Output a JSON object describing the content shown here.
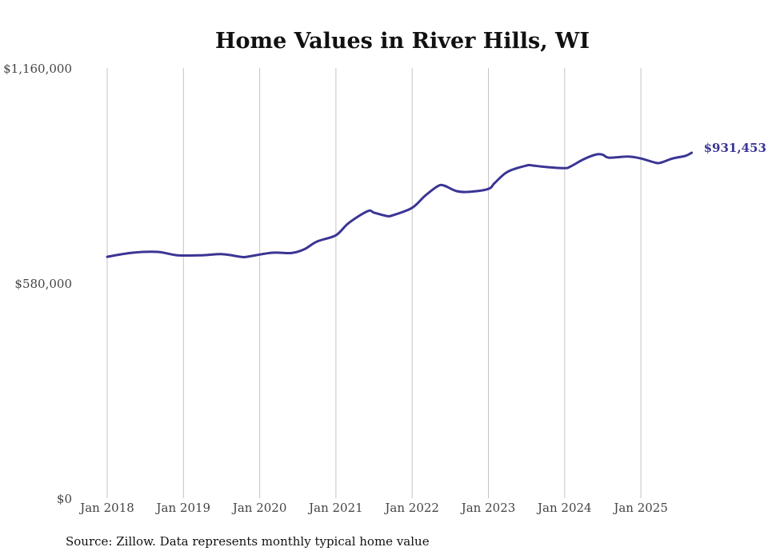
{
  "chart_data": {
    "type": "line",
    "title": "Home Values in River Hills, WI",
    "xlabel": "",
    "ylabel": "",
    "ylim": [
      0,
      1160000
    ],
    "yticks": [
      0,
      580000,
      1160000
    ],
    "ytick_labels": [
      "$0",
      "$580,000",
      "$1,160,000"
    ],
    "xticks": [
      "2018-01",
      "2019-01",
      "2020-01",
      "2021-01",
      "2022-01",
      "2023-01",
      "2024-01",
      "2025-01"
    ],
    "xtick_labels": [
      "Jan 2018",
      "Jan 2019",
      "Jan 2020",
      "Jan 2021",
      "Jan 2022",
      "Jan 2023",
      "Jan 2024",
      "Jan 2025"
    ],
    "grid": "vertical",
    "series": [
      {
        "name": "Typical home value",
        "color": "#3b3594",
        "points": [
          [
            "2018-01",
            651000
          ],
          [
            "2018-05",
            662000
          ],
          [
            "2018-09",
            664000
          ],
          [
            "2018-12",
            655000
          ],
          [
            "2019-04",
            655000
          ],
          [
            "2019-07",
            658000
          ],
          [
            "2019-10",
            651000
          ],
          [
            "2019-11",
            651000
          ],
          [
            "2020-03",
            662000
          ],
          [
            "2020-06",
            661000
          ],
          [
            "2020-08",
            671000
          ],
          [
            "2020-10",
            692000
          ],
          [
            "2021-01",
            709000
          ],
          [
            "2021-03",
            742000
          ],
          [
            "2021-06",
            774000
          ],
          [
            "2021-07",
            770000
          ],
          [
            "2021-09",
            761000
          ],
          [
            "2021-10",
            763000
          ],
          [
            "2022-01",
            783000
          ],
          [
            "2022-03",
            815000
          ],
          [
            "2022-05",
            841000
          ],
          [
            "2022-06",
            843000
          ],
          [
            "2022-08",
            828000
          ],
          [
            "2022-10",
            826000
          ],
          [
            "2023-01",
            834000
          ],
          [
            "2023-02",
            850000
          ],
          [
            "2023-04",
            880000
          ],
          [
            "2023-07",
            897000
          ],
          [
            "2023-08",
            897000
          ],
          [
            "2023-10",
            893000
          ],
          [
            "2024-01",
            890000
          ],
          [
            "2024-02",
            895000
          ],
          [
            "2024-04",
            914000
          ],
          [
            "2024-06",
            927000
          ],
          [
            "2024-07",
            926000
          ],
          [
            "2024-08",
            918000
          ],
          [
            "2024-11",
            921000
          ],
          [
            "2025-01",
            916000
          ],
          [
            "2025-03",
            906000
          ],
          [
            "2025-04",
            904000
          ],
          [
            "2025-06",
            916000
          ],
          [
            "2025-08",
            923000
          ],
          [
            "2025-09",
            931453
          ]
        ]
      }
    ],
    "end_label": "$931,453"
  },
  "source": "Source: Zillow. Data represents monthly typical home value"
}
